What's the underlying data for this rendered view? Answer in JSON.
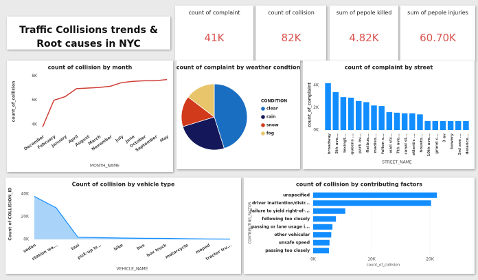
{
  "header": {
    "title": "Traffic Collisions trends & Root causes in NYC"
  },
  "kpis": [
    {
      "label": "count of complaint",
      "value": "41K"
    },
    {
      "label": "count of collision",
      "value": "82K"
    },
    {
      "label": "sum of pepole killed",
      "value": "4.82K"
    },
    {
      "label": "sum of pepole injuries",
      "value": "60.70K"
    }
  ],
  "chart_data": [
    {
      "type": "line",
      "title": "count of collision by month",
      "x_label": "MONTH_NAME",
      "y_label": "count_of_collision",
      "categories": [
        "December",
        "February",
        "January",
        "April",
        "August",
        "March",
        "November",
        "July",
        "June",
        "October",
        "September",
        "May"
      ],
      "values": [
        3800,
        6000,
        6300,
        6950,
        7000,
        7050,
        7150,
        7450,
        7550,
        7600,
        7600,
        7700
      ],
      "color": "#cf3f38",
      "ylim": [
        3500,
        8300
      ],
      "yticks": [
        {
          "value": 4000,
          "label": "4K"
        },
        {
          "value": 6000,
          "label": "6K"
        },
        {
          "value": 8000,
          "label": "8K"
        }
      ]
    },
    {
      "type": "pie",
      "title": "count of complaint by weather condtion",
      "legend_title": "CONDITION",
      "categories": [
        "clear",
        "rain",
        "snow",
        "fog"
      ],
      "values": [
        18500,
        10300,
        6200,
        6000
      ],
      "colors": [
        "#1a6ec2",
        "#14185a",
        "#d13a1a",
        "#e8c56a"
      ]
    },
    {
      "type": "bar",
      "title": "count of complaint by street",
      "x_label": "STREET_NAME",
      "y_label": "count_of_complaint",
      "categories": [
        "broadway",
        "5th ave...",
        "lexingt...",
        "queens ...",
        "park av...",
        "flatbus...",
        "madiso...",
        "fulton s...",
        "wall str...",
        "7th ave...",
        "canal st...",
        "atlantic ...",
        "housto...",
        "10th ave...",
        "grand c...",
        "3 av",
        "bowery",
        "3rd ave ...",
        "delance..."
      ],
      "values": [
        4200,
        3400,
        2950,
        2900,
        2600,
        2500,
        2200,
        2150,
        1600,
        1550,
        1500,
        1500,
        1400,
        800,
        800,
        800,
        800,
        800,
        800
      ],
      "color": "#118dff",
      "ylim": [
        0,
        4500
      ],
      "yticks": [
        {
          "value": 0,
          "label": "0K"
        },
        {
          "value": 2000,
          "label": "2K"
        },
        {
          "value": 4000,
          "label": "4K"
        }
      ]
    },
    {
      "type": "area",
      "title": "Count of collision by vehicle type",
      "x_label": "VEHICLE_NAME",
      "y_label": "Count of COLLISION_ID",
      "categories": [
        "sedan",
        "station wa...",
        "taxi",
        "pick-up tr...",
        "bike",
        "bus",
        "box truck",
        "motorcycle",
        "moped",
        "tractor tru..."
      ],
      "values": [
        38000,
        28000,
        2000,
        1500,
        1200,
        1000,
        900,
        600,
        400,
        300
      ],
      "color": "#118dff",
      "fill": "#a9d3f8",
      "ylim": [
        0,
        45000
      ],
      "yticks": [
        {
          "value": 0,
          "label": "0K"
        },
        {
          "value": 20000,
          "label": "20K"
        },
        {
          "value": 40000,
          "label": "40K"
        }
      ]
    },
    {
      "type": "hbar",
      "title": "count of collision by contributing factors",
      "x_label": "count_of_collision",
      "y_label": "CONTRIBUTING_FACTOR",
      "categories": [
        "unspecified",
        "driver inattention/distr...",
        "failure to yield right-of-...",
        "following too closely",
        "passing or lane usage i...",
        "other vehicular",
        "unsafe speed",
        "passing too closely"
      ],
      "values": [
        21200,
        20200,
        5500,
        3900,
        3300,
        3100,
        2800,
        2700
      ],
      "color": "#118dff",
      "xlim": [
        0,
        24000
      ],
      "xticks": [
        {
          "value": 0,
          "label": "0K"
        },
        {
          "value": 10000,
          "label": "10K"
        },
        {
          "value": 20000,
          "label": "20K"
        }
      ]
    }
  ]
}
